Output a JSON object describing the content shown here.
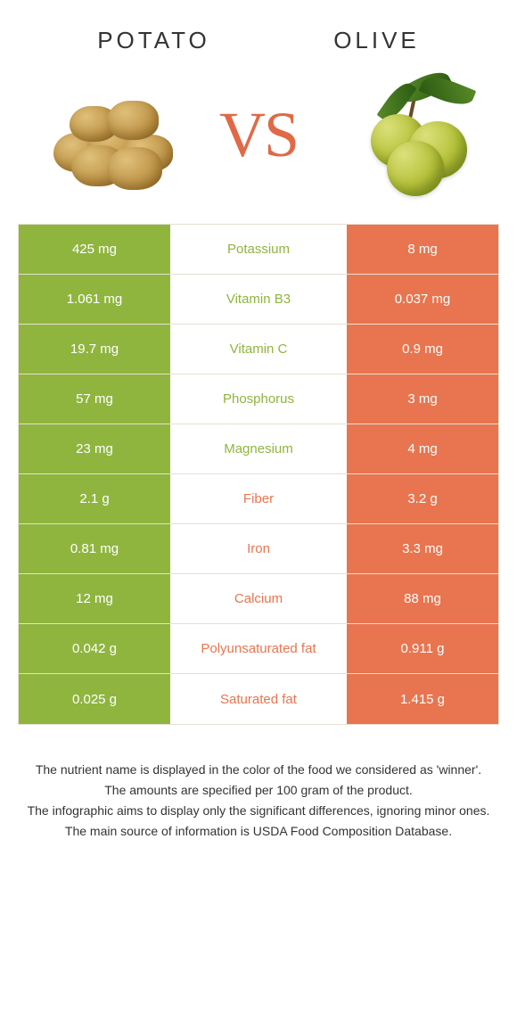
{
  "header": {
    "left_title": "Potato",
    "right_title": "Olive",
    "vs_label": "VS"
  },
  "colors": {
    "potato": "#8fb53f",
    "olive": "#e8754f",
    "row_border": "#e6e0d3",
    "background": "#ffffff",
    "text_dark": "#333333"
  },
  "table": {
    "rows": [
      {
        "nutrient": "Potassium",
        "left": "425 mg",
        "right": "8 mg",
        "winner": "potato"
      },
      {
        "nutrient": "Vitamin B3",
        "left": "1.061 mg",
        "right": "0.037 mg",
        "winner": "potato"
      },
      {
        "nutrient": "Vitamin C",
        "left": "19.7 mg",
        "right": "0.9 mg",
        "winner": "potato"
      },
      {
        "nutrient": "Phosphorus",
        "left": "57 mg",
        "right": "3 mg",
        "winner": "potato"
      },
      {
        "nutrient": "Magnesium",
        "left": "23 mg",
        "right": "4 mg",
        "winner": "potato"
      },
      {
        "nutrient": "Fiber",
        "left": "2.1 g",
        "right": "3.2 g",
        "winner": "olive"
      },
      {
        "nutrient": "Iron",
        "left": "0.81 mg",
        "right": "3.3 mg",
        "winner": "olive"
      },
      {
        "nutrient": "Calcium",
        "left": "12 mg",
        "right": "88 mg",
        "winner": "olive"
      },
      {
        "nutrient": "Polyunsaturated fat",
        "left": "0.042 g",
        "right": "0.911 g",
        "winner": "olive"
      },
      {
        "nutrient": "Saturated fat",
        "left": "0.025 g",
        "right": "1.415 g",
        "winner": "olive"
      }
    ]
  },
  "footer": {
    "lines": [
      "The nutrient name is displayed in the color of the food we considered as 'winner'.",
      "The amounts are specified per 100 gram of the product.",
      "The infographic aims to display only the significant differences, ignoring minor ones.",
      "The main source of information is USDA Food Composition Database."
    ]
  }
}
